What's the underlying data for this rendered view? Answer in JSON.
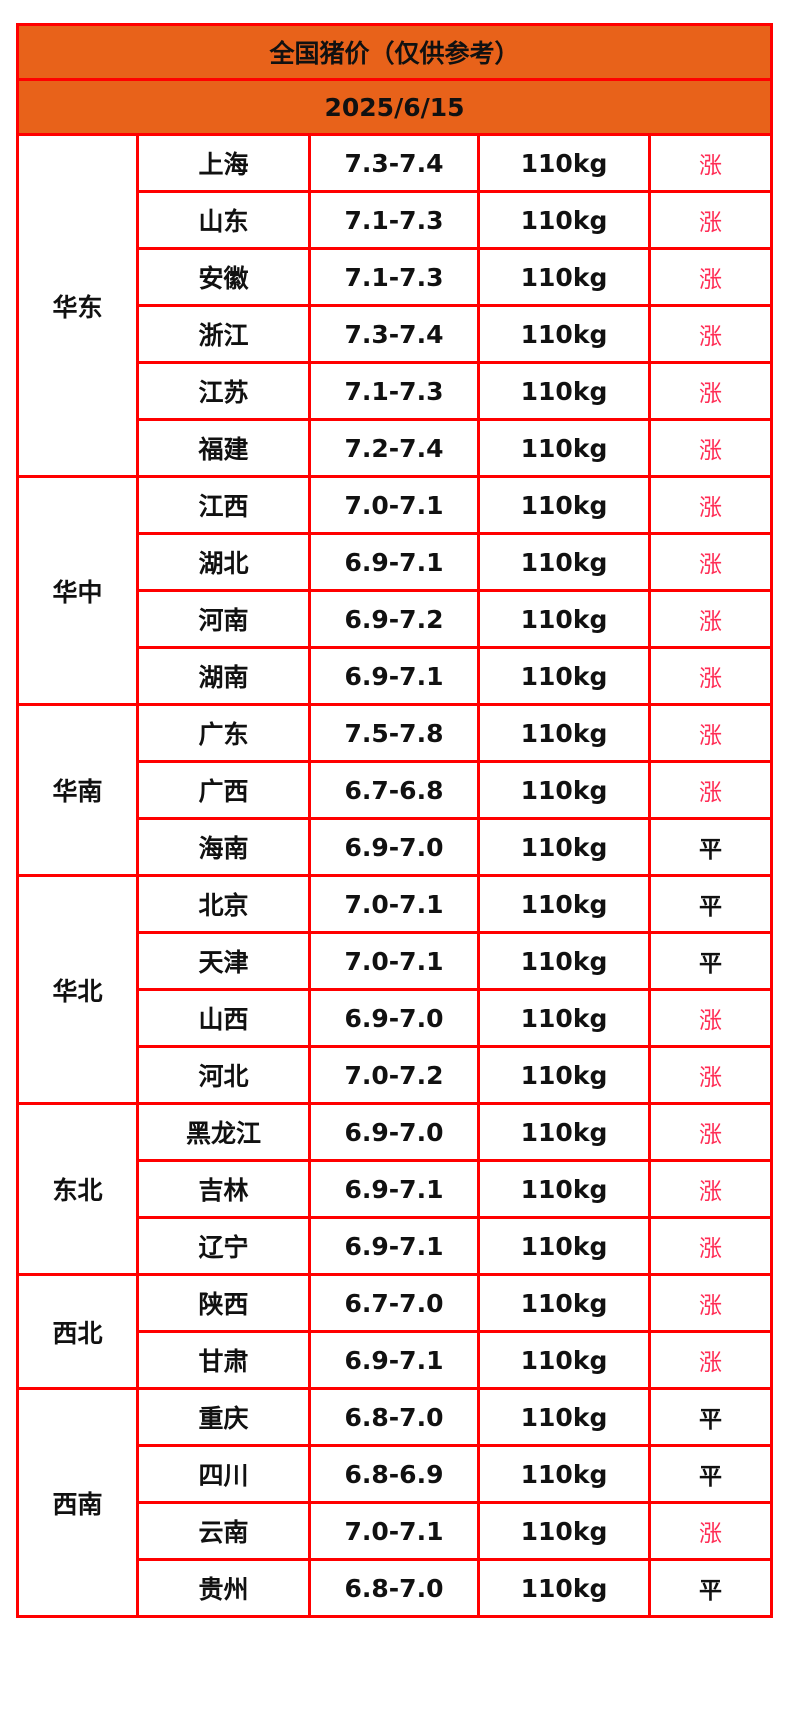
{
  "title": "全国猪价（仅供参考）",
  "date": "2025/6/15",
  "colors": {
    "header_bg": "#e8621a",
    "border": "#ff0000",
    "up": "#ff2d55",
    "flat": "#111111"
  },
  "regions": [
    {
      "name": "华东",
      "rows": [
        {
          "province": "上海",
          "price": "7.3-7.4",
          "weight": "110kg",
          "trend": "涨"
        },
        {
          "province": "山东",
          "price": "7.1-7.3",
          "weight": "110kg",
          "trend": "涨"
        },
        {
          "province": "安徽",
          "price": "7.1-7.3",
          "weight": "110kg",
          "trend": "涨"
        },
        {
          "province": "浙江",
          "price": "7.3-7.4",
          "weight": "110kg",
          "trend": "涨"
        },
        {
          "province": "江苏",
          "price": "7.1-7.3",
          "weight": "110kg",
          "trend": "涨"
        },
        {
          "province": "福建",
          "price": "7.2-7.4",
          "weight": "110kg",
          "trend": "涨"
        }
      ]
    },
    {
      "name": "华中",
      "rows": [
        {
          "province": "江西",
          "price": "7.0-7.1",
          "weight": "110kg",
          "trend": "涨"
        },
        {
          "province": "湖北",
          "price": "6.9-7.1",
          "weight": "110kg",
          "trend": "涨"
        },
        {
          "province": "河南",
          "price": "6.9-7.2",
          "weight": "110kg",
          "trend": "涨"
        },
        {
          "province": "湖南",
          "price": "6.9-7.1",
          "weight": "110kg",
          "trend": "涨"
        }
      ]
    },
    {
      "name": "华南",
      "rows": [
        {
          "province": "广东",
          "price": "7.5-7.8",
          "weight": "110kg",
          "trend": "涨"
        },
        {
          "province": "广西",
          "price": "6.7-6.8",
          "weight": "110kg",
          "trend": "涨"
        },
        {
          "province": "海南",
          "price": "6.9-7.0",
          "weight": "110kg",
          "trend": "平"
        }
      ]
    },
    {
      "name": "华北",
      "rows": [
        {
          "province": "北京",
          "price": "7.0-7.1",
          "weight": "110kg",
          "trend": "平"
        },
        {
          "province": "天津",
          "price": "7.0-7.1",
          "weight": "110kg",
          "trend": "平"
        },
        {
          "province": "山西",
          "price": "6.9-7.0",
          "weight": "110kg",
          "trend": "涨"
        },
        {
          "province": "河北",
          "price": "7.0-7.2",
          "weight": "110kg",
          "trend": "涨"
        }
      ]
    },
    {
      "name": "东北",
      "rows": [
        {
          "province": "黑龙江",
          "price": "6.9-7.0",
          "weight": "110kg",
          "trend": "涨"
        },
        {
          "province": "吉林",
          "price": "6.9-7.1",
          "weight": "110kg",
          "trend": "涨"
        },
        {
          "province": "辽宁",
          "price": "6.9-7.1",
          "weight": "110kg",
          "trend": "涨"
        }
      ]
    },
    {
      "name": "西北",
      "rows": [
        {
          "province": "陕西",
          "price": "6.7-7.0",
          "weight": "110kg",
          "trend": "涨"
        },
        {
          "province": "甘肃",
          "price": "6.9-7.1",
          "weight": "110kg",
          "trend": "涨"
        }
      ]
    },
    {
      "name": "西南",
      "rows": [
        {
          "province": "重庆",
          "price": "6.8-7.0",
          "weight": "110kg",
          "trend": "平"
        },
        {
          "province": "四川",
          "price": "6.8-6.9",
          "weight": "110kg",
          "trend": "平"
        },
        {
          "province": "云南",
          "price": "7.0-7.1",
          "weight": "110kg",
          "trend": "涨"
        },
        {
          "province": "贵州",
          "price": "6.8-7.0",
          "weight": "110kg",
          "trend": "平"
        }
      ]
    }
  ]
}
